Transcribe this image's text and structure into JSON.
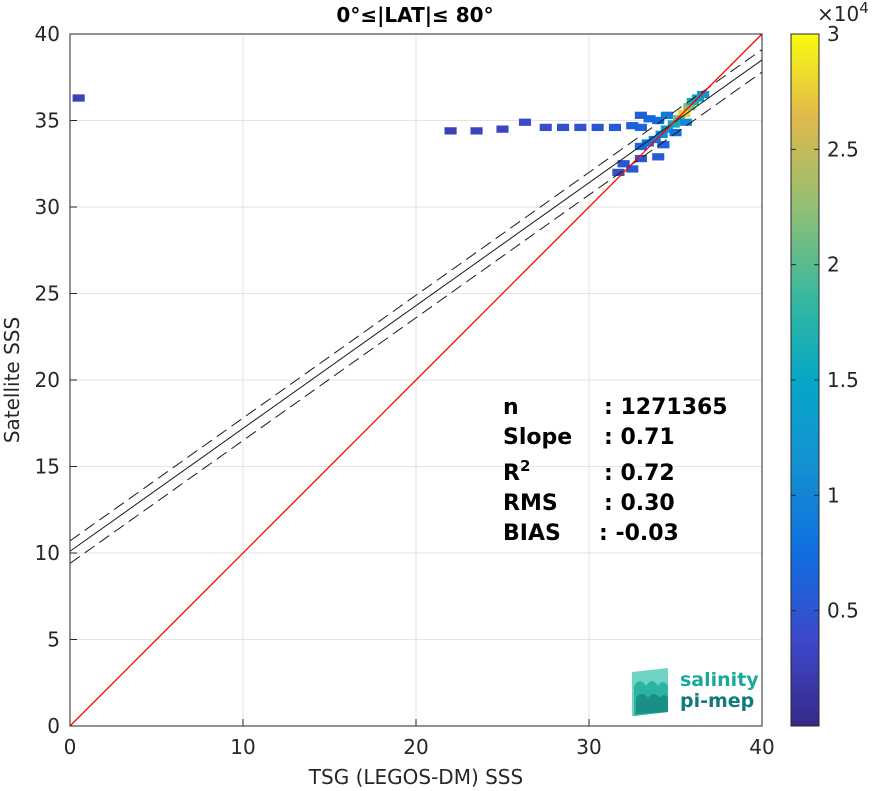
{
  "chart_data": {
    "type": "heatmap",
    "title": "0°≤|LAT|≤ 80°",
    "xlabel": "TSG (LEGOS-DM) SSS",
    "ylabel": "Satellite SSS",
    "xlim": [
      0,
      40
    ],
    "ylim": [
      0,
      40
    ],
    "xticks": [
      "0",
      "10",
      "20",
      "30",
      "40"
    ],
    "yticks": [
      "0",
      "5",
      "10",
      "15",
      "20",
      "25",
      "30",
      "35",
      "40"
    ],
    "grid": true,
    "identity_line": {
      "x": [
        0,
        40
      ],
      "y": [
        0,
        40
      ],
      "color": "#ff0000"
    },
    "fit_line": {
      "intercept": 10.1,
      "slope": 0.71
    },
    "fit_bounds": [
      {
        "intercept": 10.7,
        "slope": 0.71
      },
      {
        "intercept": 9.4,
        "slope": 0.71
      }
    ],
    "density_cells": [
      {
        "x": 35.5,
        "y": 35.4,
        "count": 14000
      },
      {
        "x": 35.8,
        "y": 35.8,
        "count": 9000
      },
      {
        "x": 35.2,
        "y": 35.1,
        "count": 8000
      },
      {
        "x": 36.0,
        "y": 36.1,
        "count": 5000
      },
      {
        "x": 34.9,
        "y": 34.8,
        "count": 4500
      },
      {
        "x": 36.3,
        "y": 36.3,
        "count": 3500
      },
      {
        "x": 34.5,
        "y": 34.5,
        "count": 3000
      },
      {
        "x": 36.6,
        "y": 36.5,
        "count": 2500
      },
      {
        "x": 34.2,
        "y": 34.2,
        "count": 2000
      },
      {
        "x": 33.8,
        "y": 33.9,
        "count": 1500
      },
      {
        "x": 33.4,
        "y": 33.7,
        "count": 1200
      },
      {
        "x": 33.0,
        "y": 33.5,
        "count": 900
      },
      {
        "x": 33.0,
        "y": 34.6,
        "count": 800
      },
      {
        "x": 32.5,
        "y": 34.7,
        "count": 700
      },
      {
        "x": 31.5,
        "y": 34.6,
        "count": 600
      },
      {
        "x": 30.5,
        "y": 34.6,
        "count": 500
      },
      {
        "x": 29.5,
        "y": 34.6,
        "count": 450
      },
      {
        "x": 28.5,
        "y": 34.6,
        "count": 400
      },
      {
        "x": 27.5,
        "y": 34.6,
        "count": 350
      },
      {
        "x": 32.5,
        "y": 32.2,
        "count": 600
      },
      {
        "x": 32.0,
        "y": 32.5,
        "count": 500
      },
      {
        "x": 31.7,
        "y": 32.0,
        "count": 400
      },
      {
        "x": 33.0,
        "y": 32.8,
        "count": 500
      },
      {
        "x": 34.0,
        "y": 35.0,
        "count": 1000
      },
      {
        "x": 34.5,
        "y": 35.3,
        "count": 1400
      },
      {
        "x": 33.5,
        "y": 35.1,
        "count": 900
      },
      {
        "x": 33.0,
        "y": 35.3,
        "count": 700
      },
      {
        "x": 34.3,
        "y": 33.6,
        "count": 800
      },
      {
        "x": 35.0,
        "y": 34.3,
        "count": 1200
      },
      {
        "x": 35.6,
        "y": 34.9,
        "count": 2000
      },
      {
        "x": 34.0,
        "y": 32.9,
        "count": 600
      },
      {
        "x": 26.3,
        "y": 34.9,
        "count": 300
      },
      {
        "x": 25.0,
        "y": 34.5,
        "count": 200
      },
      {
        "x": 23.5,
        "y": 34.4,
        "count": 200
      },
      {
        "x": 22.0,
        "y": 34.4,
        "count": 150
      },
      {
        "x": 0.5,
        "y": 36.3,
        "count": 150
      }
    ],
    "colorbar": {
      "colormap": "parula",
      "min": 0,
      "max": 30000,
      "ticks": [
        "0.5",
        "1",
        "1.5",
        "2",
        "2.5",
        "3"
      ],
      "tick_values": [
        0.5,
        1,
        1.5,
        2,
        2.5,
        3
      ],
      "multiplier_base": "×10",
      "multiplier_exp": "4"
    },
    "annotations": [
      {
        "label": "n",
        "value": ": 1271365"
      },
      {
        "label": "Slope",
        "value": ": 0.71"
      },
      {
        "label": "R",
        "sup": "2",
        "value": ": 0.72"
      },
      {
        "label": "RMS",
        "value": ": 0.30"
      },
      {
        "label": "BIAS",
        "value": ": -0.03"
      }
    ]
  },
  "logo": {
    "line1": "salinity",
    "line2": "pi-mep",
    "colors": {
      "text1": "#1aa99a",
      "text2": "#127a7a",
      "mark": "#2bb3a3"
    }
  }
}
